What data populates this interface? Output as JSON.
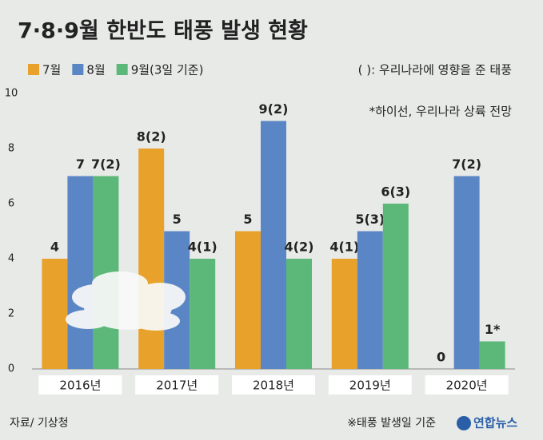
{
  "chart_data": {
    "type": "bar",
    "title": "7·8·9월 한반도 태풍 발생 현황",
    "categories": [
      "2016년",
      "2017년",
      "2018년",
      "2019년",
      "2020년"
    ],
    "series": [
      {
        "name": "7월",
        "color": "#e8a12a",
        "values": [
          4,
          8,
          5,
          4,
          0
        ],
        "value_labels": [
          "4",
          "8(2)",
          "5",
          "4(1)",
          "0"
        ]
      },
      {
        "name": "8월",
        "color": "#5b86c5",
        "values": [
          7,
          5,
          9,
          5,
          7
        ],
        "value_labels": [
          "7",
          "5",
          "9(2)",
          "5(3)",
          "7(2)"
        ]
      },
      {
        "name": "9월(3일 기준)",
        "color": "#5bb878",
        "values": [
          7,
          4,
          4,
          6,
          1
        ],
        "value_labels": [
          "7(2)",
          "4(1)",
          "4(2)",
          "6(3)",
          "1*"
        ]
      }
    ],
    "ylim": [
      0,
      10
    ],
    "yticks": [
      0,
      2,
      4,
      6,
      8,
      10
    ],
    "grid": false,
    "annotations": [
      "( ): 우리나라에 영향을 준 태풍",
      "*하이선, 우리나라 상륙 전망",
      "※태풍 발생일 기준"
    ],
    "source": "자료/ 기상청",
    "logo": "연합뉴스"
  }
}
